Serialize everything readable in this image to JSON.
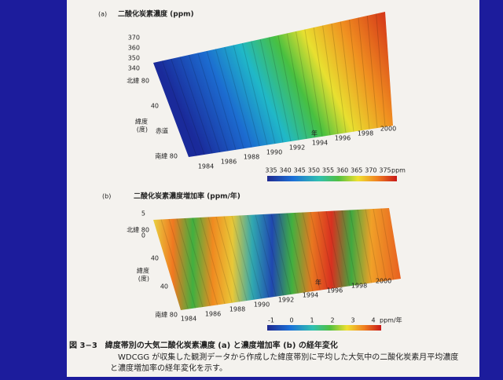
{
  "panel_a": {
    "label": "(a)",
    "title": "二酸化炭素濃度 (ppm)",
    "z_ticks": [
      "370",
      "360",
      "350",
      "340"
    ],
    "lat_ticks": [
      "北緯 80",
      "40",
      "赤道",
      "南緯 80"
    ],
    "lat_axis_label": "緯度\n(度)",
    "year_ticks": [
      "1984",
      "1986",
      "1988",
      "1990",
      "1992",
      "1994",
      "1996",
      "1998",
      "2000"
    ],
    "year_axis_label": "年",
    "colorbar_ticks": [
      "335",
      "340",
      "345",
      "350",
      "355",
      "360",
      "365",
      "370",
      "375"
    ],
    "colorbar_unit": "ppm"
  },
  "panel_b": {
    "label": "(b)",
    "title": "二酸化炭素濃度増加率 (ppm/年)",
    "z_ticks": [
      "5",
      "0"
    ],
    "lat_ticks": [
      "北緯 80",
      "40",
      "40",
      "南緯 80"
    ],
    "lat_axis_label": "緯度\n(度)",
    "year_ticks": [
      "1984",
      "1986",
      "1988",
      "1990",
      "1992",
      "1994",
      "1996",
      "1998",
      "2000"
    ],
    "year_axis_label": "年",
    "colorbar_ticks": [
      "-1",
      "0",
      "1",
      "2",
      "3",
      "4"
    ],
    "colorbar_unit": "ppm/年"
  },
  "caption": {
    "title": "図 3−3　緯度帯別の大気二酸化炭素濃度 (a) と濃度増加率 (b) の経年変化",
    "body_1": "WDCGG が収集した観測データから作成した緯度帯別に平均した大気中の二酸化炭素月平均濃度",
    "body_2": "と濃度増加率の経年変化を示す。"
  }
}
